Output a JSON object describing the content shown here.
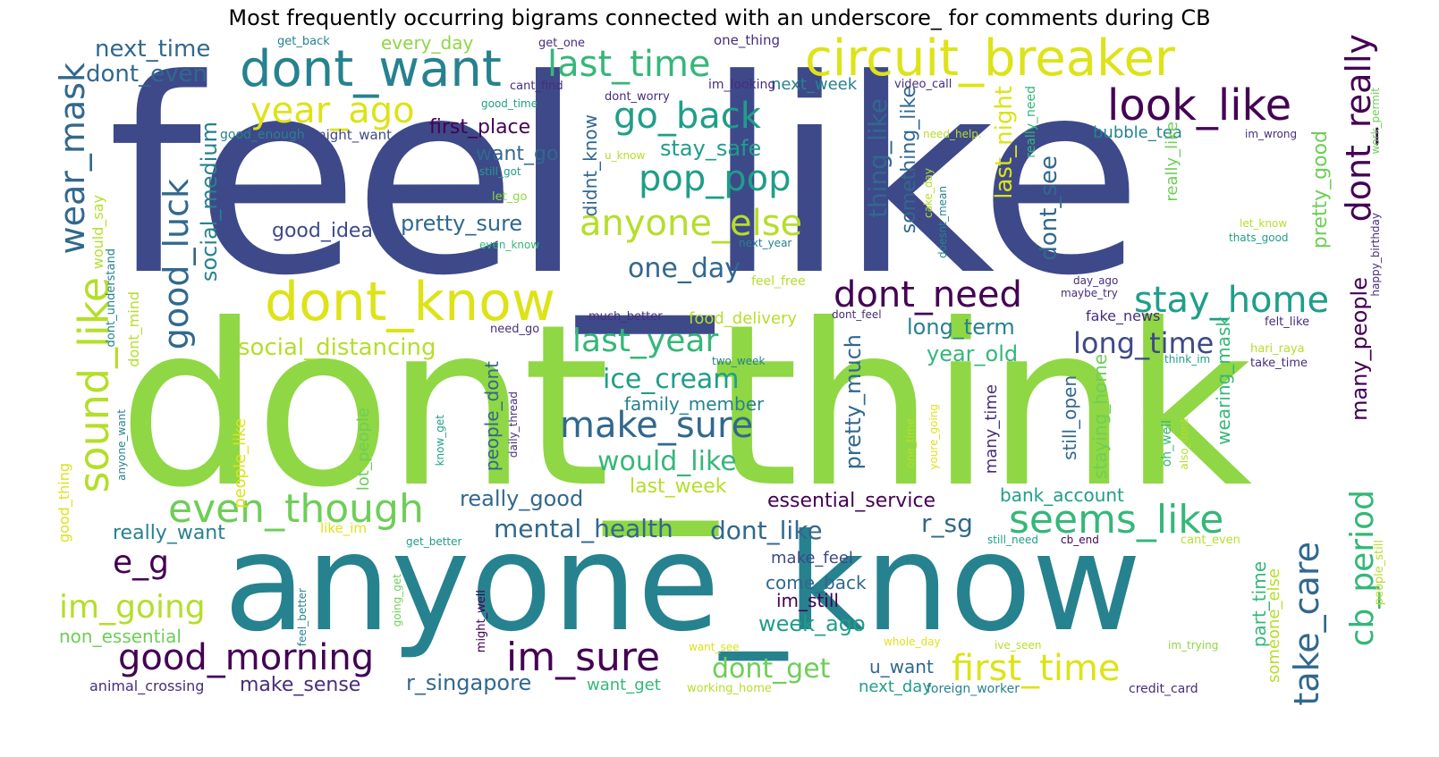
{
  "title": "Most frequently occurring bigrams connected with an underscore_ for comments during CB",
  "colors": {
    "dark_purple": "#440154",
    "purple": "#472d7b",
    "indigo": "#3e4989",
    "blue": "#31688e",
    "teal": "#26828e",
    "teal_green": "#1f9e89",
    "green": "#35b779",
    "lime": "#6ece58",
    "light_green": "#8fd744",
    "yellow_green": "#b5de2b",
    "yellow": "#dde318"
  },
  "words": [
    {
      "id": "feel_like",
      "text": "feel_like"
    },
    {
      "id": "dont_think",
      "text": "dont_think"
    },
    {
      "id": "anyone_know",
      "text": "anyone_know"
    },
    {
      "id": "dont_want",
      "text": "dont_want"
    },
    {
      "id": "circuit_breaker",
      "text": "circuit_breaker"
    },
    {
      "id": "dont_know",
      "text": "dont_know"
    },
    {
      "id": "look_like",
      "text": "look_like"
    },
    {
      "id": "last_time",
      "text": "last_time"
    },
    {
      "id": "year_ago",
      "text": "year_ago"
    },
    {
      "id": "go_back",
      "text": "go_back"
    },
    {
      "id": "pop_pop",
      "text": "pop_pop"
    },
    {
      "id": "anyone_else",
      "text": "anyone_else"
    },
    {
      "id": "dont_need",
      "text": "dont_need"
    },
    {
      "id": "stay_home",
      "text": "stay_home"
    },
    {
      "id": "even_though",
      "text": "even_though"
    },
    {
      "id": "seems_like",
      "text": "seems_like"
    },
    {
      "id": "make_sure",
      "text": "make_sure"
    },
    {
      "id": "good_morning",
      "text": "good_morning"
    },
    {
      "id": "im_sure",
      "text": "im_sure"
    },
    {
      "id": "first_time",
      "text": "first_time"
    },
    {
      "id": "last_year",
      "text": "last_year"
    },
    {
      "id": "im_going",
      "text": "im_going"
    },
    {
      "id": "e_g",
      "text": "e_g"
    },
    {
      "id": "long_time",
      "text": "long_time"
    },
    {
      "id": "social_distancing",
      "text": "social_distancing"
    },
    {
      "id": "ice_cream",
      "text": "ice_cream"
    },
    {
      "id": "would_like",
      "text": "would_like"
    },
    {
      "id": "one_day",
      "text": "one_day"
    },
    {
      "id": "next_time",
      "text": "next_time"
    },
    {
      "id": "dont_even",
      "text": "dont_even"
    },
    {
      "id": "mental_health",
      "text": "mental_health"
    },
    {
      "id": "dont_like",
      "text": "dont_like"
    },
    {
      "id": "dont_get",
      "text": "dont_get"
    },
    {
      "id": "make_sense",
      "text": "make_sense"
    },
    {
      "id": "r_singapore",
      "text": "r_singapore"
    },
    {
      "id": "pretty_sure",
      "text": "pretty_sure"
    },
    {
      "id": "stay_safe",
      "text": "stay_safe"
    },
    {
      "id": "first_place",
      "text": "first_place"
    },
    {
      "id": "really_good",
      "text": "really_good"
    },
    {
      "id": "really_want",
      "text": "really_want"
    },
    {
      "id": "essential_service",
      "text": "essential_service"
    },
    {
      "id": "week_ago",
      "text": "week_ago"
    },
    {
      "id": "r_sg",
      "text": "r_sg"
    },
    {
      "id": "year_old",
      "text": "year_old"
    },
    {
      "id": "long_term",
      "text": "long_term"
    },
    {
      "id": "last_week",
      "text": "last_week"
    },
    {
      "id": "family_member",
      "text": "family_member"
    },
    {
      "id": "want_go",
      "text": "want_go"
    },
    {
      "id": "good_idea",
      "text": "good_idea"
    },
    {
      "id": "every_day",
      "text": "every_day"
    },
    {
      "id": "next_week",
      "text": "next_week"
    },
    {
      "id": "bank_account",
      "text": "bank_account"
    },
    {
      "id": "non_essential",
      "text": "non_essential"
    },
    {
      "id": "food_delivery",
      "text": "food_delivery"
    },
    {
      "id": "bubble_tea",
      "text": "bubble_tea"
    },
    {
      "id": "u_want",
      "text": "u_want"
    },
    {
      "id": "next_day",
      "text": "next_day"
    },
    {
      "id": "want_get",
      "text": "want_get"
    },
    {
      "id": "come_back",
      "text": "come_back"
    },
    {
      "id": "im_still",
      "text": "im_still"
    },
    {
      "id": "make_feel",
      "text": "make_feel"
    },
    {
      "id": "fake_news",
      "text": "fake_news"
    },
    {
      "id": "animal_crossing",
      "text": "animal_crossing"
    },
    {
      "id": "foreign_worker",
      "text": "foreign_worker"
    },
    {
      "id": "credit_card",
      "text": "credit_card"
    },
    {
      "id": "working_home",
      "text": "working_home"
    },
    {
      "id": "might_want",
      "text": "might_want"
    },
    {
      "id": "good_enough",
      "text": "good_enough"
    },
    {
      "id": "one_thing",
      "text": "one_thing"
    },
    {
      "id": "get_back",
      "text": "get_back"
    },
    {
      "id": "get_one",
      "text": "get_one"
    },
    {
      "id": "cant_find",
      "text": "cant_find"
    },
    {
      "id": "im_looking",
      "text": "im_looking"
    },
    {
      "id": "dont_worry",
      "text": "dont_worry"
    },
    {
      "id": "video_call",
      "text": "video_call"
    },
    {
      "id": "good_time",
      "text": "good_time"
    },
    {
      "id": "need_help",
      "text": "need_help."
    },
    {
      "id": "im_wrong",
      "text": "im_wrong"
    },
    {
      "id": "u_know",
      "text": "u_know"
    },
    {
      "id": "still_got",
      "text": "still_got"
    },
    {
      "id": "let_go",
      "text": "let_go"
    },
    {
      "id": "even_know",
      "text": "even_know"
    },
    {
      "id": "next_year",
      "text": "next_year"
    },
    {
      "id": "let_know",
      "text": "let_know"
    },
    {
      "id": "thats_good",
      "text": "thats_good"
    },
    {
      "id": "feel_free",
      "text": "feel_free"
    },
    {
      "id": "day_ago",
      "text": "day_ago"
    },
    {
      "id": "maybe_try",
      "text": "maybe_try"
    },
    {
      "id": "much_better",
      "text": "much_better"
    },
    {
      "id": "dont_feel",
      "text": "dont_feel"
    },
    {
      "id": "need_go",
      "text": "need_go"
    },
    {
      "id": "felt_like",
      "text": "felt_like"
    },
    {
      "id": "two_week",
      "text": "two_week"
    },
    {
      "id": "think_im",
      "text": "think_im"
    },
    {
      "id": "hari_raya",
      "text": "hari_raya"
    },
    {
      "id": "take_time",
      "text": "take_time"
    },
    {
      "id": "like_im",
      "text": "like_im"
    },
    {
      "id": "get_better",
      "text": "get_better"
    },
    {
      "id": "still_need",
      "text": "still_need"
    },
    {
      "id": "cb_end",
      "text": "cb_end"
    },
    {
      "id": "cant_even",
      "text": "cant_even"
    },
    {
      "id": "want_see",
      "text": "want_see"
    },
    {
      "id": "whole_day",
      "text": "whole_day"
    },
    {
      "id": "ive_seen",
      "text": "ive_seen"
    },
    {
      "id": "im_trying",
      "text": "im_trying"
    },
    {
      "id": "wear_mask",
      "text": "wear_mask"
    },
    {
      "id": "sound_like",
      "text": "sound_like"
    },
    {
      "id": "good_luck",
      "text": "good_luck"
    },
    {
      "id": "social_medium",
      "text": "social_medium"
    },
    {
      "id": "would_say",
      "text": "would_say"
    },
    {
      "id": "dont_understand",
      "text": "dont_understand"
    },
    {
      "id": "dont_mind",
      "text": "dont_mind"
    },
    {
      "id": "good_thing",
      "text": "good_thing"
    },
    {
      "id": "anyone_want",
      "text": "anyone_want"
    },
    {
      "id": "people_like",
      "text": "people_like"
    },
    {
      "id": "lot_people",
      "text": "lot_people"
    },
    {
      "id": "feel_better",
      "text": "feel_better"
    },
    {
      "id": "going_get",
      "text": "going_get"
    },
    {
      "id": "might_well",
      "text": "might_well"
    },
    {
      "id": "know_get",
      "text": "know_get"
    },
    {
      "id": "daily_thread",
      "text": "daily_thread"
    },
    {
      "id": "people_dont",
      "text": "people_dont"
    },
    {
      "id": "didnt_know",
      "text": "didnt_know"
    },
    {
      "id": "pretty_much",
      "text": "pretty_much"
    },
    {
      "id": "thing_like",
      "text": "thing_like"
    },
    {
      "id": "something_like",
      "text": "something_like"
    },
    {
      "id": "cake_day",
      "text": "cake_day"
    },
    {
      "id": "doesnt_mean",
      "text": "doesnt_mean"
    },
    {
      "id": "last_night",
      "text": "last_night"
    },
    {
      "id": "really_need",
      "text": "really_need"
    },
    {
      "id": "dont_see",
      "text": "dont_see"
    },
    {
      "id": "many_time",
      "text": "many_time"
    },
    {
      "id": "one_time",
      "text": "one_time"
    },
    {
      "id": "youre_going",
      "text": "youre_going"
    },
    {
      "id": "still_open",
      "text": "still_open"
    },
    {
      "id": "staying_home",
      "text": "staying_home"
    },
    {
      "id": "oh_well",
      "text": "oh_well"
    },
    {
      "id": "also_dont",
      "text": "also_dont"
    },
    {
      "id": "really_like",
      "text": "really_like"
    },
    {
      "id": "wearing_mask",
      "text": "wearing_mask"
    },
    {
      "id": "part_time",
      "text": "part_time"
    },
    {
      "id": "someone_else",
      "text": "someone_else"
    },
    {
      "id": "take_care",
      "text": "take_care"
    },
    {
      "id": "pretty_good",
      "text": "pretty_good"
    },
    {
      "id": "many_people",
      "text": "many_people"
    },
    {
      "id": "dont_really",
      "text": "dont_really"
    },
    {
      "id": "cb_period",
      "text": "cb_period"
    },
    {
      "id": "happy_birthday",
      "text": "happy_birthday"
    },
    {
      "id": "work_permit",
      "text": "work_permit"
    },
    {
      "id": "people_still",
      "text": "people_still"
    }
  ]
}
